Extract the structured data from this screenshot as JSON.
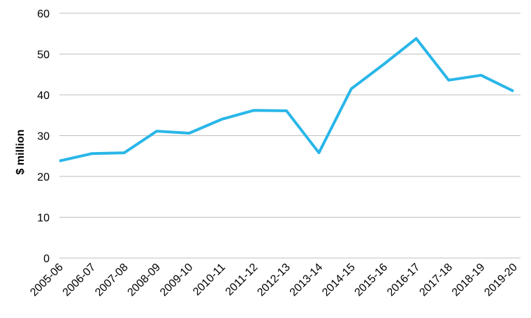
{
  "chart_data": {
    "type": "line",
    "y_label": "$ million",
    "categories": [
      "2005-06",
      "2006-07",
      "2007-08",
      "2008-09",
      "2009-10",
      "2010-11",
      "2011-12",
      "2012-13",
      "2013-14",
      "2014-15",
      "2015-16",
      "2016-17",
      "2017-18",
      "2018-19",
      "2019-20"
    ],
    "values": [
      23.8,
      25.6,
      25.8,
      31.1,
      30.6,
      34.0,
      36.2,
      36.1,
      25.8,
      41.5,
      47.5,
      53.8,
      43.6,
      44.8,
      40.9
    ],
    "color": "#29b6e8",
    "ylim": [
      0,
      60
    ],
    "yticks": [
      0,
      10,
      20,
      30,
      40,
      50,
      60
    ],
    "grid": true
  }
}
